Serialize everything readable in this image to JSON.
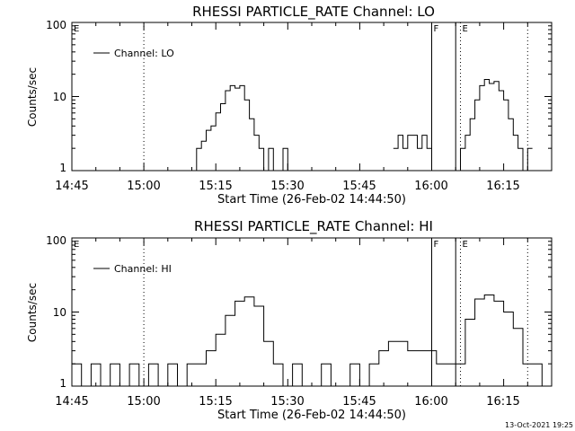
{
  "footer": {
    "timestamp": "13-Oct-2021 19:25"
  },
  "chart_data": [
    {
      "type": "line",
      "title": "RHESSI PARTICLE_RATE Channel: LO",
      "xlabel": "Start Time (26-Feb-02 14:44:50)",
      "ylabel": "Counts/sec",
      "y_scale": "log",
      "ylim": [
        1,
        100
      ],
      "xlim": [
        "14:45",
        "16:25"
      ],
      "x_ticks": [
        "14:45",
        "15:00",
        "15:15",
        "15:30",
        "15:45",
        "16:00",
        "16:15"
      ],
      "y_ticks": [
        "1",
        "10",
        "100"
      ],
      "legend": {
        "position": "top-left",
        "entries": [
          "Channel: LO"
        ]
      },
      "markers": [
        {
          "time": "14:45",
          "label": "E",
          "style": "dotted"
        },
        {
          "time": "15:00",
          "label": "",
          "style": "dotted"
        },
        {
          "time": "16:00",
          "label": "F",
          "style": "solid"
        },
        {
          "time": "16:05",
          "label": "",
          "style": "solid"
        },
        {
          "time": "16:06",
          "label": "E",
          "style": "dotted"
        },
        {
          "time": "16:20",
          "label": "",
          "style": "dotted"
        }
      ],
      "series": [
        {
          "name": "Channel: LO",
          "x": [
            "15:10",
            "15:11",
            "15:12",
            "15:13",
            "15:14",
            "15:15",
            "15:16",
            "15:17",
            "15:18",
            "15:19",
            "15:20",
            "15:21",
            "15:22",
            "15:23",
            "15:24",
            "15:25",
            "15:26",
            "15:27",
            "15:28",
            "15:29",
            "15:30"
          ],
          "y": [
            1,
            2,
            2.5,
            3.5,
            4,
            6,
            8,
            12,
            14,
            13,
            14,
            9,
            5,
            3,
            2,
            1,
            2,
            1,
            1,
            2,
            1
          ]
        },
        {
          "name": "Channel: LO",
          "x": [
            "15:52",
            "15:53",
            "15:54",
            "15:55",
            "15:56",
            "15:57",
            "15:58",
            "15:59",
            "16:00"
          ],
          "y": [
            2,
            3,
            2,
            3,
            3,
            2,
            3,
            2,
            1
          ]
        },
        {
          "name": "Channel: LO",
          "x": [
            "16:05",
            "16:06",
            "16:07",
            "16:08",
            "16:09",
            "16:10",
            "16:11",
            "16:12",
            "16:13",
            "16:14",
            "16:15",
            "16:16",
            "16:17",
            "16:18",
            "16:19",
            "16:20"
          ],
          "y": [
            1,
            2,
            3,
            5,
            9,
            14,
            17,
            15,
            16,
            12,
            9,
            5,
            3,
            2,
            1,
            2
          ]
        }
      ]
    },
    {
      "type": "line",
      "title": "RHESSI PARTICLE_RATE Channel: HI",
      "xlabel": "Start Time (26-Feb-02 14:44:50)",
      "ylabel": "Counts/sec",
      "y_scale": "log",
      "ylim": [
        1,
        100
      ],
      "xlim": [
        "14:45",
        "16:25"
      ],
      "x_ticks": [
        "14:45",
        "15:00",
        "15:15",
        "15:30",
        "15:45",
        "16:00",
        "16:15"
      ],
      "y_ticks": [
        "1",
        "10",
        "100"
      ],
      "legend": {
        "position": "top-left",
        "entries": [
          "Channel: HI"
        ]
      },
      "markers": [
        {
          "time": "14:45",
          "label": "E",
          "style": "dotted"
        },
        {
          "time": "15:00",
          "label": "",
          "style": "dotted"
        },
        {
          "time": "16:00",
          "label": "F",
          "style": "solid"
        },
        {
          "time": "16:05",
          "label": "",
          "style": "solid"
        },
        {
          "time": "16:06",
          "label": "E",
          "style": "dotted"
        },
        {
          "time": "16:20",
          "label": "",
          "style": "dotted"
        }
      ],
      "series": [
        {
          "name": "Channel: HI",
          "x": [
            "14:45",
            "14:47",
            "14:49",
            "14:51",
            "14:53",
            "14:55",
            "14:57",
            "14:59",
            "15:01",
            "15:03",
            "15:05",
            "15:07",
            "15:09",
            "15:11",
            "15:13",
            "15:15",
            "15:17",
            "15:19",
            "15:21",
            "15:23",
            "15:25",
            "15:27",
            "15:29",
            "15:31",
            "15:33",
            "15:35",
            "15:37",
            "15:39",
            "15:41",
            "15:43",
            "15:45",
            "15:47",
            "15:49",
            "15:51",
            "15:53",
            "15:55",
            "15:57",
            "15:59",
            "16:01",
            "16:03",
            "16:05",
            "16:07",
            "16:09",
            "16:11",
            "16:13",
            "16:15",
            "16:17",
            "16:19",
            "16:21",
            "16:23"
          ],
          "y": [
            2,
            1,
            2,
            1,
            2,
            1,
            2,
            1,
            2,
            1,
            2,
            1,
            2,
            2,
            3,
            5,
            9,
            14,
            16,
            12,
            4,
            2,
            1,
            2,
            1,
            1,
            2,
            1,
            1,
            2,
            1,
            2,
            3,
            4,
            4,
            3,
            3,
            3,
            2,
            2,
            2,
            8,
            15,
            17,
            14,
            10,
            6,
            2,
            2,
            1
          ]
        }
      ]
    }
  ]
}
